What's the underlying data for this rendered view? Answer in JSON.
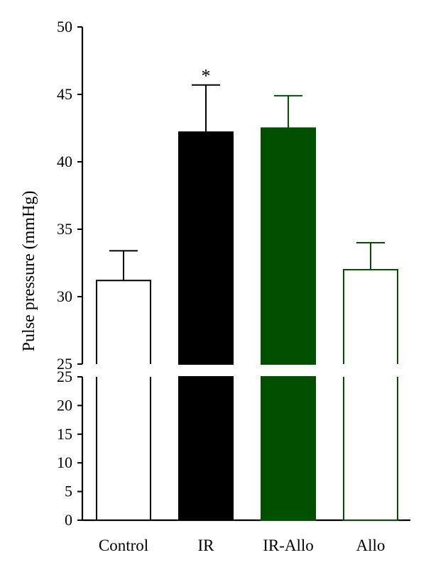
{
  "chart_data": {
    "type": "bar",
    "title": "",
    "xlabel": "",
    "ylabel": "Pulse pressure (mmHg)",
    "categories": [
      "Control",
      "IR",
      "IR-Allo",
      "Allo"
    ],
    "values": [
      31.2,
      42.2,
      42.5,
      32.0
    ],
    "errors": [
      2.2,
      3.5,
      2.4,
      2.0
    ],
    "annotations": [
      "",
      "*",
      "",
      ""
    ],
    "bar_fill": [
      "#ffffff",
      "#000000",
      "#005000",
      "#ffffff"
    ],
    "bar_stroke": [
      "#000000",
      "#000000",
      "#005000",
      "#005000"
    ],
    "broken_axis": true,
    "lower_segment": {
      "ylim": [
        0,
        25
      ],
      "ticks": [
        "0",
        "5",
        "10",
        "15",
        "20",
        "25"
      ]
    },
    "upper_segment": {
      "ylim": [
        25,
        50
      ],
      "ticks": [
        "25",
        "30",
        "35",
        "40",
        "45",
        "50"
      ]
    },
    "grid": false,
    "legend": "none"
  }
}
